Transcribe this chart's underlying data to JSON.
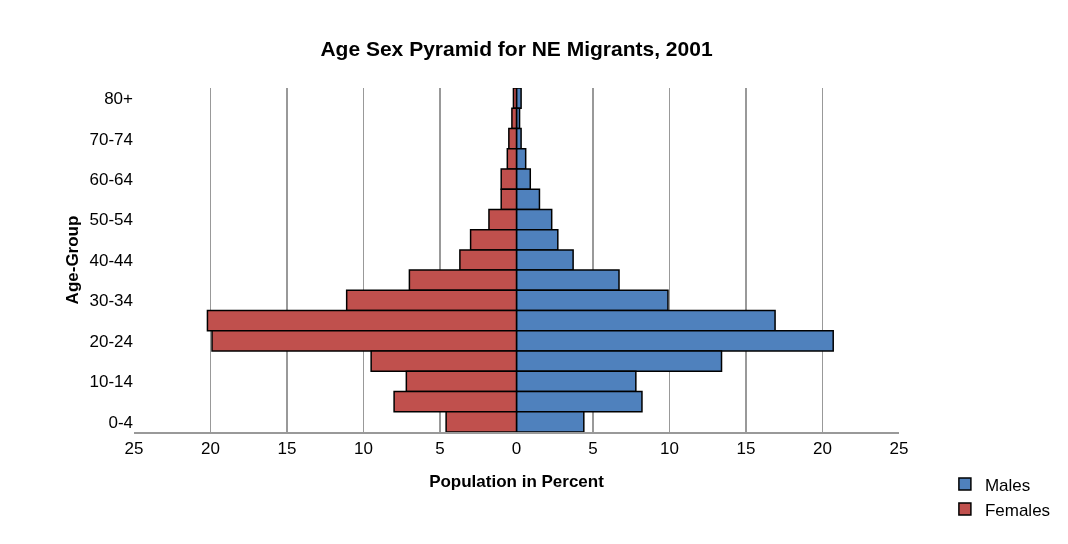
{
  "chart_data": {
    "type": "bar",
    "orientation": "horizontal",
    "title": "Age Sex Pyramid for NE Migrants, 2001",
    "xlabel": "Population in Percent",
    "ylabel": "Age-Group",
    "categories": [
      "80+",
      null,
      "70-74",
      null,
      "60-64",
      null,
      "50-54",
      null,
      "40-44",
      null,
      "30-34",
      null,
      "20-24",
      null,
      "10-14",
      null,
      "0-4"
    ],
    "series": [
      {
        "name": "Males",
        "color": "#4f81bd",
        "values": [
          0.3,
          0.2,
          0.3,
          0.6,
          0.9,
          1.5,
          2.3,
          2.7,
          3.7,
          6.7,
          9.9,
          16.9,
          20.7,
          13.4,
          7.8,
          8.2,
          4.4
        ]
      },
      {
        "name": "Females",
        "color": "#c0504d",
        "values": [
          -0.2,
          -0.3,
          -0.5,
          -0.6,
          -1.0,
          -1.0,
          -1.8,
          -3.0,
          -3.7,
          -7.0,
          -11.1,
          -20.2,
          -19.9,
          -9.5,
          -7.2,
          -8.0,
          -4.6
        ]
      }
    ],
    "xlim": [
      -25,
      25
    ],
    "xticks": [
      {
        "value": -25,
        "label": "25"
      },
      {
        "value": -20,
        "label": "20"
      },
      {
        "value": -15,
        "label": "15"
      },
      {
        "value": -10,
        "label": "10"
      },
      {
        "value": -5,
        "label": "5"
      },
      0,
      5,
      10,
      15,
      20,
      25
    ],
    "stacked": true,
    "grid": "x",
    "legend": "bottom right"
  }
}
